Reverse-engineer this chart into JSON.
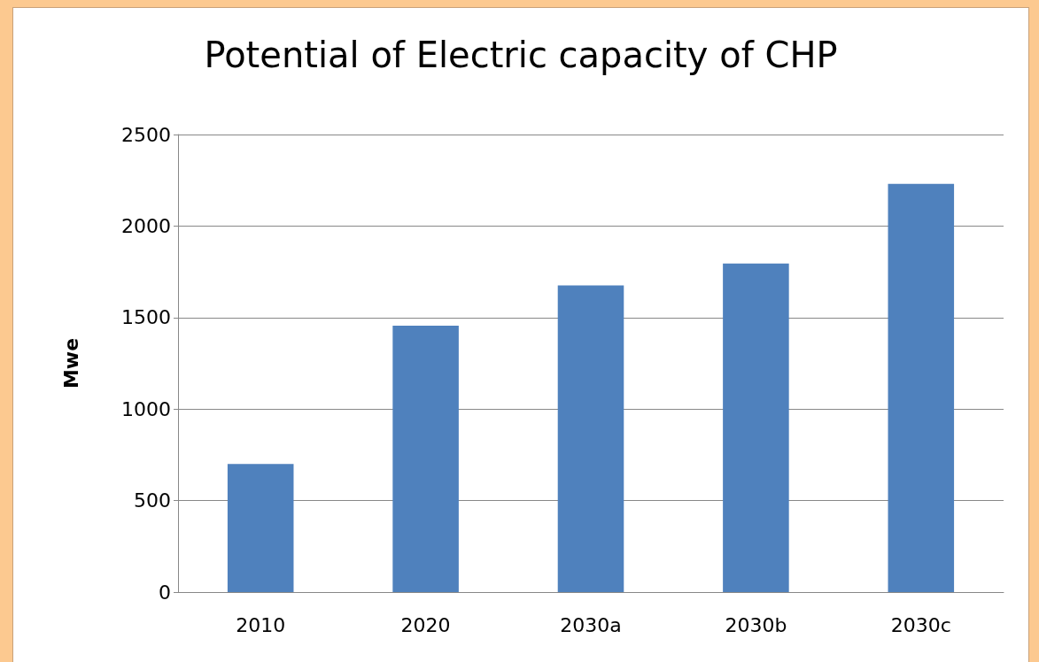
{
  "chart_data": {
    "type": "bar",
    "title": "Potential of Electric capacity of CHP",
    "ylabel": "Mwe",
    "categories": [
      "2010",
      "2020",
      "2030a",
      "2030b",
      "2030c"
    ],
    "values": [
      700,
      1455,
      1675,
      1795,
      2230
    ],
    "color": "#4f81bd",
    "ylim": [
      0,
      2500
    ],
    "yticks": [
      0,
      500,
      1000,
      1500,
      2000,
      2500
    ],
    "grid": "y"
  }
}
